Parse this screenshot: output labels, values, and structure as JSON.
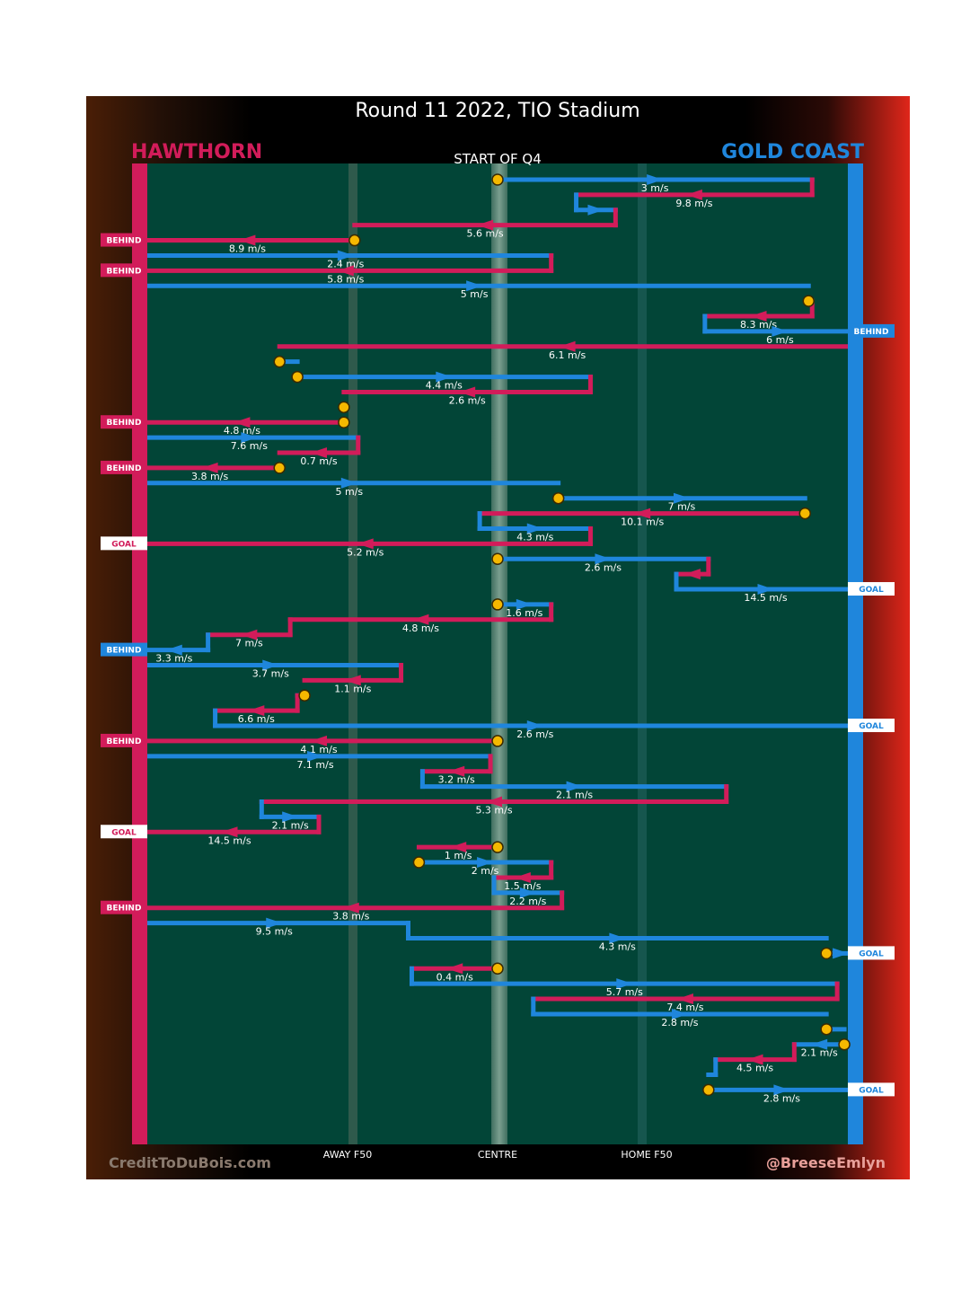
{
  "header": {
    "title": "Round 11 2022, TIO Stadium",
    "home_team": "HAWTHORN",
    "away_team": "GOLD COAST",
    "quarter_label": "START OF Q4"
  },
  "footer": {
    "credit_left": "CreditToDuBois.com",
    "credit_right": "@BreeseEmlyn",
    "zone_labels": [
      "AWAY F50",
      "CENTRE",
      "HOME F50"
    ]
  },
  "colors": {
    "hawthorn": "#d21c5a",
    "gold_coast": "#1f86dc",
    "ground": "#024537",
    "stoppage": "#f5b800"
  },
  "chart_data": {
    "type": "line",
    "title": "Round 11 2022, TIO Stadium",
    "subtitle": "START OF Q4",
    "x_axis": {
      "range": [
        0,
        100
      ],
      "labels": [
        "AWAY F50",
        "CENTRE",
        "HOME F50"
      ],
      "label_positions": [
        29,
        50,
        71
      ]
    },
    "legend": [
      {
        "team": "HAWTHORN",
        "side": "left",
        "color": "#d21c5a"
      },
      {
        "team": "GOLD COAST",
        "side": "right",
        "color": "#1f86dc"
      }
    ],
    "sequence": [
      {
        "team": "GC",
        "x1": 50,
        "x2": 94,
        "speed": "3 m/s",
        "start_stoppage": true
      },
      {
        "team": "HAW",
        "x1": 94,
        "x2": 61,
        "speed": "9.8 m/s"
      },
      {
        "team": "GC",
        "x1": 61,
        "x2": 66.5,
        "speed": ""
      },
      {
        "team": "HAW",
        "x1": 66.5,
        "x2": 30,
        "speed": "5.6 m/s"
      },
      {
        "team": "HAW",
        "x1": 30,
        "x2": 0,
        "speed": "8.9 m/s",
        "start_stoppage": true,
        "result": "BEHIND"
      },
      {
        "team": "GC",
        "x1": 0,
        "x2": 57.5,
        "speed": "2.4 m/s"
      },
      {
        "team": "HAW",
        "x1": 57.5,
        "x2": 0,
        "speed": "5.8 m/s",
        "result": "BEHIND"
      },
      {
        "team": "GC",
        "x1": 0,
        "x2": 93.5,
        "speed": "5 m/s"
      },
      {
        "team": "GC",
        "x1": 93.5,
        "x2": 94,
        "speed": "",
        "start_stoppage": true
      },
      {
        "team": "HAW",
        "x1": 94,
        "x2": 79,
        "speed": "8.3 m/s"
      },
      {
        "team": "GC",
        "x1": 79,
        "x2": 100,
        "speed": "6 m/s",
        "result": "BEHIND"
      },
      {
        "team": "HAW",
        "x1": 100,
        "x2": 19.5,
        "speed": "6.1 m/s"
      },
      {
        "team": "GC",
        "x1": 19.5,
        "x2": 22,
        "speed": "",
        "start_stoppage": true
      },
      {
        "team": "GC",
        "x1": 22,
        "x2": 63,
        "speed": "4.4 m/s",
        "start_stoppage": true
      },
      {
        "team": "HAW",
        "x1": 63,
        "x2": 28.5,
        "speed": "2.6 m/s"
      },
      {
        "team": "GC",
        "x1": 28.5,
        "x2": 28.5,
        "speed": "",
        "start_stoppage": true
      },
      {
        "team": "HAW",
        "x1": 28.5,
        "x2": 0,
        "speed": "4.8 m/s",
        "start_stoppage": true,
        "result": "BEHIND"
      },
      {
        "team": "GC",
        "x1": 0,
        "x2": 30.5,
        "speed": "7.6 m/s"
      },
      {
        "team": "HAW",
        "x1": 30.5,
        "x2": 19.5,
        "speed": "0.7 m/s"
      },
      {
        "team": "HAW",
        "x1": 19.5,
        "x2": 0,
        "speed": "3.8 m/s",
        "start_stoppage": true,
        "result": "BEHIND"
      },
      {
        "team": "GC",
        "x1": 0,
        "x2": 58.5,
        "speed": "5 m/s"
      },
      {
        "team": "GC",
        "x1": 58.5,
        "x2": 93,
        "speed": "7 m/s",
        "start_stoppage": true
      },
      {
        "team": "HAW",
        "x1": 93,
        "x2": 47.5,
        "speed": "10.1 m/s",
        "start_stoppage": true
      },
      {
        "team": "GC",
        "x1": 47.5,
        "x2": 63,
        "speed": "4.3 m/s"
      },
      {
        "team": "HAW",
        "x1": 63,
        "x2": 0,
        "speed": "5.2 m/s",
        "result": "GOAL"
      },
      {
        "team": "GC",
        "x1": 50,
        "x2": 79.5,
        "speed": "2.6 m/s",
        "start_stoppage": true
      },
      {
        "team": "HAW",
        "x1": 79.5,
        "x2": 75,
        "speed": ""
      },
      {
        "team": "GC",
        "x1": 75,
        "x2": 100,
        "speed": "14.5 m/s",
        "result": "GOAL"
      },
      {
        "team": "GC",
        "x1": 50,
        "x2": 57.5,
        "speed": "1.6 m/s",
        "start_stoppage": true
      },
      {
        "team": "HAW",
        "x1": 57.5,
        "x2": 21,
        "speed": "4.8 m/s"
      },
      {
        "team": "HAW",
        "x1": 21,
        "x2": 9.5,
        "speed": "7 m/s"
      },
      {
        "team": "GC",
        "x1": 9.5,
        "x2": 0,
        "speed": "3.3 m/s",
        "result": "BEHIND"
      },
      {
        "team": "GC",
        "x1": 0,
        "x2": 36.5,
        "speed": "3.7 m/s"
      },
      {
        "team": "HAW",
        "x1": 36.5,
        "x2": 23,
        "speed": "1.1 m/s"
      },
      {
        "team": "GC",
        "x1": 23,
        "x2": 22,
        "speed": "",
        "start_stoppage": true
      },
      {
        "team": "HAW",
        "x1": 22,
        "x2": 10.5,
        "speed": "6.6 m/s"
      },
      {
        "team": "GC",
        "x1": 10.5,
        "x2": 100,
        "speed": "2.6 m/s",
        "result": "GOAL"
      },
      {
        "team": "HAW",
        "x1": 50,
        "x2": 0,
        "speed": "4.1 m/s",
        "start_stoppage": true,
        "result": "BEHIND"
      },
      {
        "team": "GC",
        "x1": 0,
        "x2": 49,
        "speed": "7.1 m/s"
      },
      {
        "team": "HAW",
        "x1": 49,
        "x2": 39.5,
        "speed": "3.2 m/s"
      },
      {
        "team": "GC",
        "x1": 39.5,
        "x2": 82,
        "speed": "2.1 m/s"
      },
      {
        "team": "HAW",
        "x1": 82,
        "x2": 17,
        "speed": "5.3 m/s"
      },
      {
        "team": "GC",
        "x1": 17,
        "x2": 25,
        "speed": "2.1 m/s"
      },
      {
        "team": "HAW",
        "x1": 25,
        "x2": 0,
        "speed": "14.5 m/s",
        "result": "GOAL"
      },
      {
        "team": "HAW",
        "x1": 50,
        "x2": 39,
        "speed": "1 m/s",
        "start_stoppage": true
      },
      {
        "team": "GC",
        "x1": 39,
        "x2": 57.5,
        "speed": "2 m/s",
        "start_stoppage": true
      },
      {
        "team": "HAW",
        "x1": 57.5,
        "x2": 49.5,
        "speed": "1.5 m/s"
      },
      {
        "team": "GC",
        "x1": 49.5,
        "x2": 59,
        "speed": "2.2 m/s"
      },
      {
        "team": "HAW",
        "x1": 59,
        "x2": 0,
        "speed": "3.8 m/s",
        "result": "BEHIND"
      },
      {
        "team": "GC",
        "x1": 0,
        "x2": 37.5,
        "speed": "9.5 m/s"
      },
      {
        "team": "GC",
        "x1": 37.5,
        "x2": 96,
        "speed": "4.3 m/s"
      },
      {
        "team": "GC",
        "x1": 96,
        "x2": 100,
        "speed": "",
        "start_stoppage": true,
        "result": "GOAL"
      },
      {
        "team": "HAW",
        "x1": 50,
        "x2": 38,
        "speed": "0.4 m/s",
        "start_stoppage": true
      },
      {
        "team": "GC",
        "x1": 38,
        "x2": 97.5,
        "speed": "5.7 m/s"
      },
      {
        "team": "HAW",
        "x1": 97.5,
        "x2": 55,
        "speed": "7.4 m/s"
      },
      {
        "team": "GC",
        "x1": 55,
        "x2": 96,
        "speed": "2.8 m/s"
      },
      {
        "team": "GC",
        "x1": 96,
        "x2": 98.5,
        "speed": "",
        "start_stoppage": true
      },
      {
        "team": "GC",
        "x1": 98.5,
        "x2": 91.5,
        "speed": "2.1 m/s",
        "start_stoppage": true
      },
      {
        "team": "HAW",
        "x1": 91.5,
        "x2": 80.5,
        "speed": "4.5 m/s"
      },
      {
        "team": "GC",
        "x1": 80.5,
        "x2": 79.5,
        "speed": ""
      },
      {
        "team": "GC",
        "x1": 79.5,
        "x2": 100,
        "speed": "2.8 m/s",
        "start_stoppage": true,
        "result": "GOAL"
      }
    ]
  }
}
